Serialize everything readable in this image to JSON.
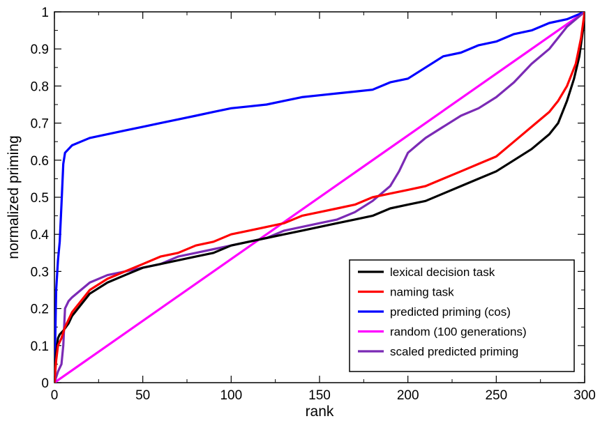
{
  "chart_data": {
    "type": "line",
    "xlabel": "rank",
    "ylabel": "normalized priming",
    "xlim": [
      0,
      300
    ],
    "ylim": [
      0,
      1
    ],
    "xticks": [
      0,
      50,
      100,
      150,
      200,
      250,
      300
    ],
    "xtick_labels": [
      "0",
      "50",
      "100",
      "150",
      "200",
      "250",
      "300"
    ],
    "yticks": [
      0,
      0.1,
      0.2,
      0.3,
      0.4,
      0.5,
      0.6,
      0.7,
      0.8,
      0.9,
      1
    ],
    "ytick_labels": [
      "0",
      "0.1",
      "0.2",
      "0.3",
      "0.4",
      "0.5",
      "0.6",
      "0.7",
      "0.8",
      "0.9",
      "1"
    ],
    "grid": false,
    "legend_position": "bottom-right",
    "series": [
      {
        "name": "lexical decision task",
        "color": "#000000",
        "x": [
          0,
          1,
          2,
          3,
          5,
          8,
          10,
          15,
          20,
          30,
          40,
          50,
          60,
          70,
          80,
          90,
          100,
          110,
          120,
          130,
          140,
          150,
          160,
          170,
          180,
          190,
          200,
          210,
          220,
          230,
          240,
          250,
          260,
          270,
          280,
          285,
          290,
          294,
          297,
          299,
          300
        ],
        "y": [
          0,
          0.08,
          0.12,
          0.13,
          0.14,
          0.16,
          0.18,
          0.21,
          0.24,
          0.27,
          0.29,
          0.31,
          0.32,
          0.33,
          0.34,
          0.35,
          0.37,
          0.38,
          0.39,
          0.4,
          0.41,
          0.42,
          0.43,
          0.44,
          0.45,
          0.47,
          0.48,
          0.49,
          0.51,
          0.53,
          0.55,
          0.57,
          0.6,
          0.63,
          0.67,
          0.7,
          0.76,
          0.82,
          0.88,
          0.95,
          1.0
        ]
      },
      {
        "name": "naming task",
        "color": "#ff0000",
        "x": [
          0,
          1,
          2,
          4,
          6,
          8,
          10,
          15,
          20,
          30,
          40,
          50,
          60,
          70,
          80,
          90,
          100,
          110,
          120,
          130,
          140,
          150,
          160,
          170,
          180,
          190,
          200,
          210,
          220,
          230,
          240,
          250,
          260,
          270,
          280,
          285,
          290,
          295,
          298,
          300
        ],
        "y": [
          0,
          0.06,
          0.1,
          0.12,
          0.15,
          0.17,
          0.19,
          0.22,
          0.25,
          0.28,
          0.3,
          0.32,
          0.34,
          0.35,
          0.37,
          0.38,
          0.4,
          0.41,
          0.42,
          0.43,
          0.45,
          0.46,
          0.47,
          0.48,
          0.5,
          0.51,
          0.52,
          0.53,
          0.55,
          0.57,
          0.59,
          0.61,
          0.65,
          0.69,
          0.73,
          0.76,
          0.8,
          0.86,
          0.93,
          1.0
        ]
      },
      {
        "name": "predicted priming (cos)",
        "color": "#0000ff",
        "x": [
          0,
          1,
          2,
          3,
          4,
          5,
          6,
          8,
          10,
          15,
          20,
          30,
          40,
          50,
          60,
          70,
          80,
          90,
          100,
          110,
          120,
          130,
          140,
          150,
          160,
          170,
          180,
          190,
          200,
          210,
          220,
          230,
          240,
          250,
          260,
          270,
          280,
          290,
          295,
          300
        ],
        "y": [
          0,
          0.25,
          0.33,
          0.38,
          0.48,
          0.59,
          0.62,
          0.63,
          0.64,
          0.65,
          0.66,
          0.67,
          0.68,
          0.69,
          0.7,
          0.71,
          0.72,
          0.73,
          0.74,
          0.745,
          0.75,
          0.76,
          0.77,
          0.775,
          0.78,
          0.785,
          0.79,
          0.81,
          0.82,
          0.85,
          0.88,
          0.89,
          0.91,
          0.92,
          0.94,
          0.95,
          0.97,
          0.98,
          0.99,
          1.0
        ]
      },
      {
        "name": "random (100 generations)",
        "color": "#ff00ff",
        "x": [
          0,
          300
        ],
        "y": [
          0,
          1.0
        ]
      },
      {
        "name": "scaled predicted priming",
        "color": "#7b2ab5",
        "x": [
          0,
          2,
          4,
          5,
          6,
          8,
          10,
          15,
          20,
          30,
          40,
          50,
          60,
          70,
          80,
          90,
          100,
          110,
          120,
          130,
          140,
          150,
          160,
          170,
          180,
          190,
          195,
          200,
          205,
          210,
          220,
          230,
          240,
          250,
          260,
          270,
          280,
          290,
          295,
          300
        ],
        "y": [
          0,
          0.03,
          0.05,
          0.1,
          0.2,
          0.22,
          0.23,
          0.25,
          0.27,
          0.29,
          0.3,
          0.31,
          0.32,
          0.34,
          0.35,
          0.36,
          0.37,
          0.38,
          0.39,
          0.41,
          0.42,
          0.43,
          0.44,
          0.46,
          0.49,
          0.53,
          0.57,
          0.62,
          0.64,
          0.66,
          0.69,
          0.72,
          0.74,
          0.77,
          0.81,
          0.86,
          0.9,
          0.96,
          0.98,
          1.0
        ]
      }
    ]
  }
}
